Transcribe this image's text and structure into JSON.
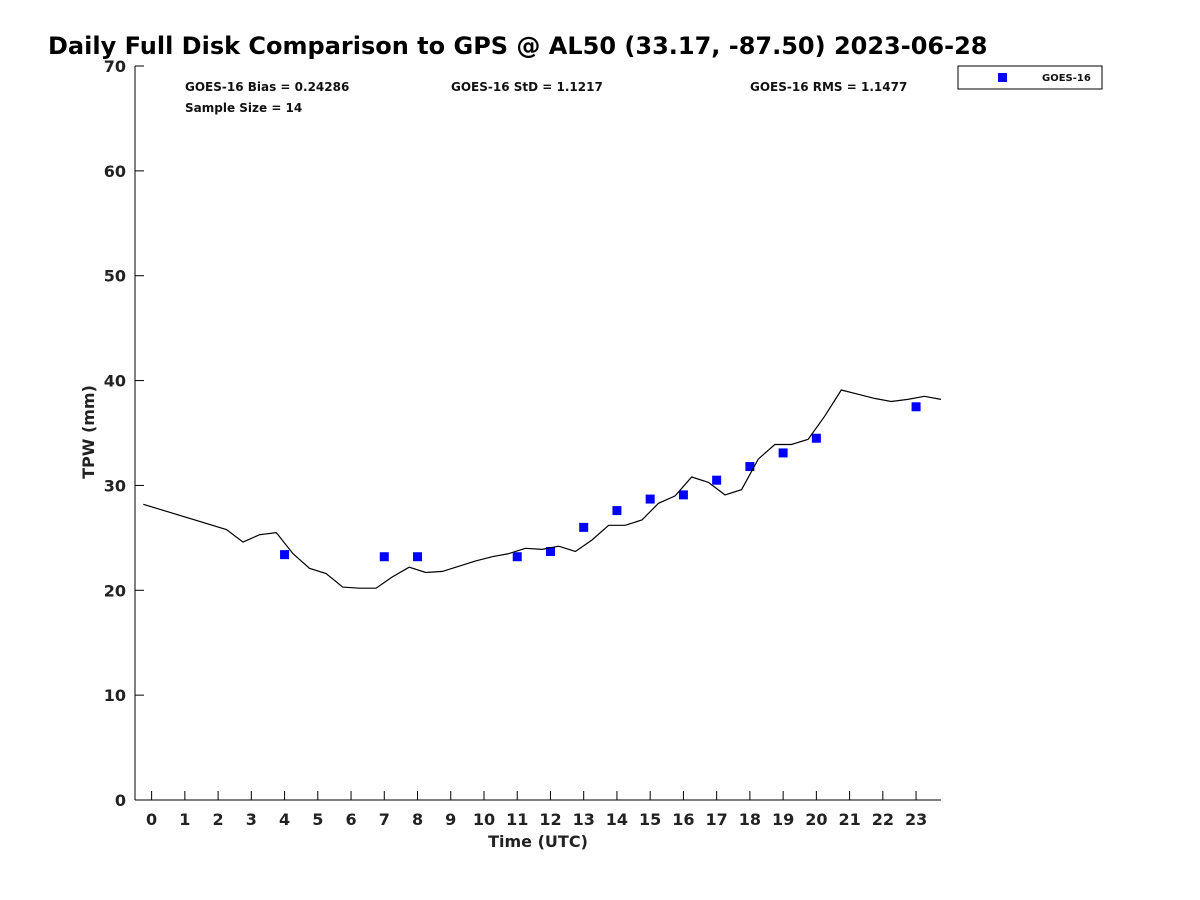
{
  "chart_data": {
    "type": "scatter",
    "title": "Daily Full Disk Comparison to GPS @ AL50 (33.17, -87.50) 2023-06-28",
    "xlabel": "Time (UTC)",
    "ylabel": "TPW (mm)",
    "xlim": [
      -0.5,
      23.75
    ],
    "ylim": [
      0,
      70
    ],
    "x_ticks": [
      0,
      1,
      2,
      3,
      4,
      5,
      6,
      7,
      8,
      9,
      10,
      11,
      12,
      13,
      14,
      15,
      16,
      17,
      18,
      19,
      20,
      21,
      22,
      23
    ],
    "y_ticks": [
      0,
      10,
      20,
      30,
      40,
      50,
      60,
      70
    ],
    "grid": false,
    "legend": {
      "position": "top-right",
      "entries": [
        "GOES-16"
      ]
    },
    "stats": {
      "bias": "GOES-16 Bias = 0.24286",
      "std": "GOES-16 StD = 1.1217",
      "rms": "GOES-16 RMS = 1.1477",
      "sample_size": "Sample Size = 14"
    },
    "series": [
      {
        "name": "GOES-16",
        "kind": "scatter",
        "marker": "square",
        "color": "#0000ff",
        "x": [
          4.0,
          7.0,
          8.0,
          11.0,
          12.0,
          13.0,
          14.0,
          15.0,
          16.0,
          17.0,
          18.0,
          19.0,
          20.0,
          23.0
        ],
        "y": [
          23.4,
          23.2,
          23.2,
          23.2,
          23.7,
          26.0,
          27.6,
          28.7,
          29.1,
          30.5,
          31.8,
          33.1,
          34.5,
          37.5
        ]
      },
      {
        "kind": "line",
        "color": "#000000",
        "x": [
          -0.25,
          2.25,
          2.75,
          3.25,
          3.75,
          4.25,
          4.75,
          5.25,
          5.75,
          6.25,
          6.75,
          7.25,
          7.75,
          8.25,
          8.75,
          9.25,
          9.75,
          10.25,
          10.75,
          11.25,
          11.75,
          12.25,
          12.75,
          13.25,
          13.75,
          14.25,
          14.75,
          15.25,
          15.75,
          16.25,
          16.75,
          17.25,
          17.75,
          18.25,
          18.75,
          19.25,
          19.75,
          20.25,
          20.75,
          21.25,
          21.75,
          22.25,
          22.75,
          23.25,
          23.75
        ],
        "y": [
          28.2,
          25.8,
          24.6,
          25.3,
          25.5,
          23.5,
          22.1,
          21.6,
          20.3,
          20.2,
          20.2,
          21.3,
          22.2,
          21.7,
          21.8,
          22.3,
          22.8,
          23.2,
          23.5,
          24.0,
          23.9,
          24.2,
          23.7,
          24.8,
          26.2,
          26.2,
          26.7,
          28.3,
          29.0,
          30.8,
          30.3,
          29.1,
          29.6,
          32.5,
          33.9,
          33.9,
          34.4,
          36.6,
          39.1,
          38.7,
          38.3,
          38.0,
          38.2,
          38.5,
          38.2
        ]
      }
    ]
  }
}
